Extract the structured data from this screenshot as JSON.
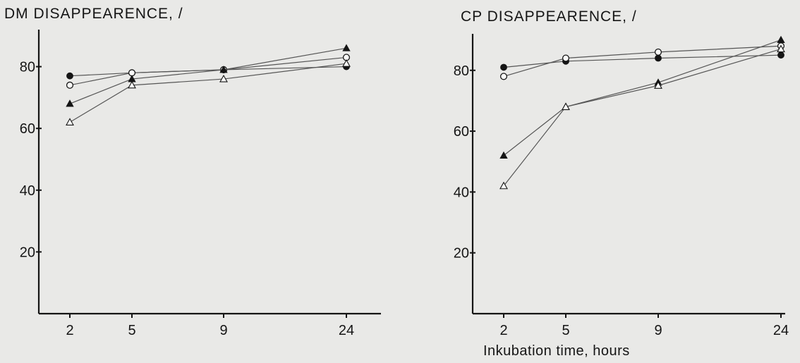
{
  "chart_data": [
    {
      "type": "line",
      "title": "DM DISAPPEARENCE, /",
      "xlabel": "",
      "ylabel": "",
      "x": [
        2,
        5,
        9,
        24
      ],
      "x_ticks": [
        "2",
        "5",
        "9",
        "24"
      ],
      "y_ticks": [
        20,
        40,
        60,
        80
      ],
      "ylim": [
        0,
        92
      ],
      "grid": false,
      "series": [
        {
          "marker": "filled-circle",
          "values": [
            77,
            78,
            79,
            80
          ]
        },
        {
          "marker": "open-circle",
          "values": [
            74,
            78,
            79,
            83
          ]
        },
        {
          "marker": "filled-triangle",
          "values": [
            68,
            76,
            79,
            86
          ]
        },
        {
          "marker": "open-triangle",
          "values": [
            62,
            74,
            76,
            81
          ]
        }
      ]
    },
    {
      "type": "line",
      "title": "CP DISAPPEARENCE, /",
      "xlabel": "Inkubation time, hours",
      "ylabel": "",
      "x": [
        2,
        5,
        9,
        24
      ],
      "x_ticks": [
        "2",
        "5",
        "9",
        "24"
      ],
      "y_ticks": [
        20,
        40,
        60,
        80
      ],
      "ylim": [
        0,
        92
      ],
      "grid": false,
      "series": [
        {
          "marker": "filled-circle",
          "values": [
            81,
            83,
            84,
            85
          ]
        },
        {
          "marker": "open-circle",
          "values": [
            78,
            84,
            86,
            88
          ]
        },
        {
          "marker": "filled-triangle",
          "values": [
            52,
            68,
            76,
            90
          ]
        },
        {
          "marker": "open-triangle",
          "values": [
            42,
            68,
            75,
            87
          ]
        }
      ]
    }
  ],
  "colors": {
    "ink": "#151515",
    "paper": "#e9e9e7",
    "line": "#555555"
  }
}
